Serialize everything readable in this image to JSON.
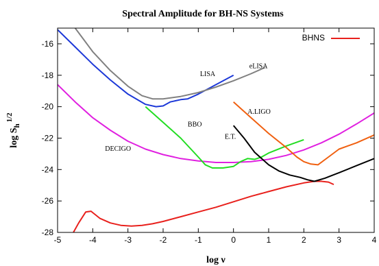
{
  "chart_data": {
    "type": "line",
    "title": "Spectral Amplitude for BH-NS Systems",
    "xlabel": "log ν",
    "ylabel_main": "log S",
    "ylabel_sub": "h",
    "ylabel_sup": "1/2",
    "xlim": [
      -5,
      4
    ],
    "ylim": [
      -28,
      -15
    ],
    "xticks": [
      "-5",
      "-4",
      "-3",
      "-2",
      "-1",
      "0",
      "1",
      "2",
      "3",
      "4"
    ],
    "yticks": [
      "-28",
      "-26",
      "-24",
      "-22",
      "-20",
      "-18",
      "-16"
    ],
    "legend": {
      "position": "top-right",
      "entries": [
        {
          "name": "BHNS",
          "color": "#e8201c"
        }
      ]
    },
    "series": [
      {
        "name": "BHNS",
        "color": "#e8201c",
        "x": [
          -4.55,
          -4.4,
          -4.2,
          -4.05,
          -3.8,
          -3.5,
          -3.2,
          -2.9,
          -2.6,
          -2.3,
          -2.0,
          -1.5,
          -1.0,
          -0.5,
          0.0,
          0.5,
          1.0,
          1.5,
          2.0,
          2.3,
          2.5,
          2.7,
          2.85
        ],
        "y": [
          -28.0,
          -27.4,
          -26.7,
          -26.65,
          -27.1,
          -27.4,
          -27.55,
          -27.6,
          -27.55,
          -27.45,
          -27.3,
          -27.0,
          -26.7,
          -26.4,
          -26.05,
          -25.7,
          -25.4,
          -25.1,
          -24.85,
          -24.75,
          -24.75,
          -24.8,
          -24.95
        ]
      },
      {
        "name": "DECIGO",
        "color": "#e020e0",
        "x": [
          -5,
          -4.5,
          -4,
          -3.5,
          -3,
          -2.5,
          -2,
          -1.5,
          -1,
          -0.5,
          0,
          0.5,
          1,
          1.5,
          2,
          2.5,
          3,
          3.5,
          4
        ],
        "y": [
          -18.6,
          -19.7,
          -20.7,
          -21.5,
          -22.2,
          -22.7,
          -23.05,
          -23.3,
          -23.45,
          -23.55,
          -23.55,
          -23.5,
          -23.35,
          -23.1,
          -22.75,
          -22.3,
          -21.75,
          -21.1,
          -20.4
        ]
      },
      {
        "name": "BBO",
        "color": "#22dd22",
        "x": [
          -2.5,
          -2.0,
          -1.5,
          -1.0,
          -0.8,
          -0.6,
          -0.3,
          0.0,
          0.2,
          0.4,
          0.6,
          0.8,
          1.0,
          1.5,
          2.0
        ],
        "y": [
          -20.0,
          -21.0,
          -22.0,
          -23.2,
          -23.7,
          -23.9,
          -23.9,
          -23.8,
          -23.5,
          -23.3,
          -23.35,
          -23.2,
          -22.95,
          -22.5,
          -22.1
        ]
      },
      {
        "name": "LISA",
        "color": "#1c38d8",
        "x": [
          -5,
          -4.5,
          -4,
          -3.5,
          -3,
          -2.5,
          -2.2,
          -2.0,
          -1.8,
          -1.5,
          -1.3,
          -1.0,
          -0.5,
          0.0
        ],
        "y": [
          -15.1,
          -16.2,
          -17.3,
          -18.3,
          -19.2,
          -19.85,
          -20.0,
          -19.95,
          -19.7,
          -19.55,
          -19.5,
          -19.2,
          -18.6,
          -18.0
        ]
      },
      {
        "name": "eLISA",
        "color": "#808080",
        "x": [
          -4.5,
          -4,
          -3.5,
          -3,
          -2.6,
          -2.3,
          -2.0,
          -1.5,
          -1.0,
          -0.5,
          0.0,
          0.5,
          0.9
        ],
        "y": [
          -15.0,
          -16.5,
          -17.7,
          -18.7,
          -19.3,
          -19.5,
          -19.5,
          -19.35,
          -19.1,
          -18.75,
          -18.35,
          -17.9,
          -17.5
        ]
      },
      {
        "name": "A.LIGO",
        "color": "#f06010",
        "x": [
          0.0,
          0.5,
          1.0,
          1.5,
          1.8,
          2.0,
          2.2,
          2.4,
          2.7,
          3.0,
          3.5,
          4.0
        ],
        "y": [
          -19.7,
          -20.7,
          -21.7,
          -22.6,
          -23.2,
          -23.5,
          -23.65,
          -23.7,
          -23.2,
          -22.7,
          -22.3,
          -21.8
        ]
      },
      {
        "name": "E.T.",
        "color": "#000000",
        "x": [
          0.0,
          0.3,
          0.6,
          1.0,
          1.3,
          1.6,
          1.9,
          2.1,
          2.3,
          2.6,
          3.0,
          3.5,
          4.0
        ],
        "y": [
          -21.2,
          -22.0,
          -22.9,
          -23.7,
          -24.1,
          -24.35,
          -24.5,
          -24.65,
          -24.75,
          -24.55,
          -24.2,
          -23.75,
          -23.3
        ]
      }
    ],
    "annotations": [
      {
        "text": "LISA",
        "x": -0.95,
        "y": -18.05
      },
      {
        "text": "eLISA",
        "x": 0.45,
        "y": -17.55
      },
      {
        "text": "BBO",
        "x": -1.3,
        "y": -21.25
      },
      {
        "text": "A.LIGO",
        "x": 0.4,
        "y": -20.45
      },
      {
        "text": "DECIGO",
        "x": -3.65,
        "y": -22.8
      },
      {
        "text": "E.T.",
        "x": -0.25,
        "y": -22.05
      }
    ]
  }
}
